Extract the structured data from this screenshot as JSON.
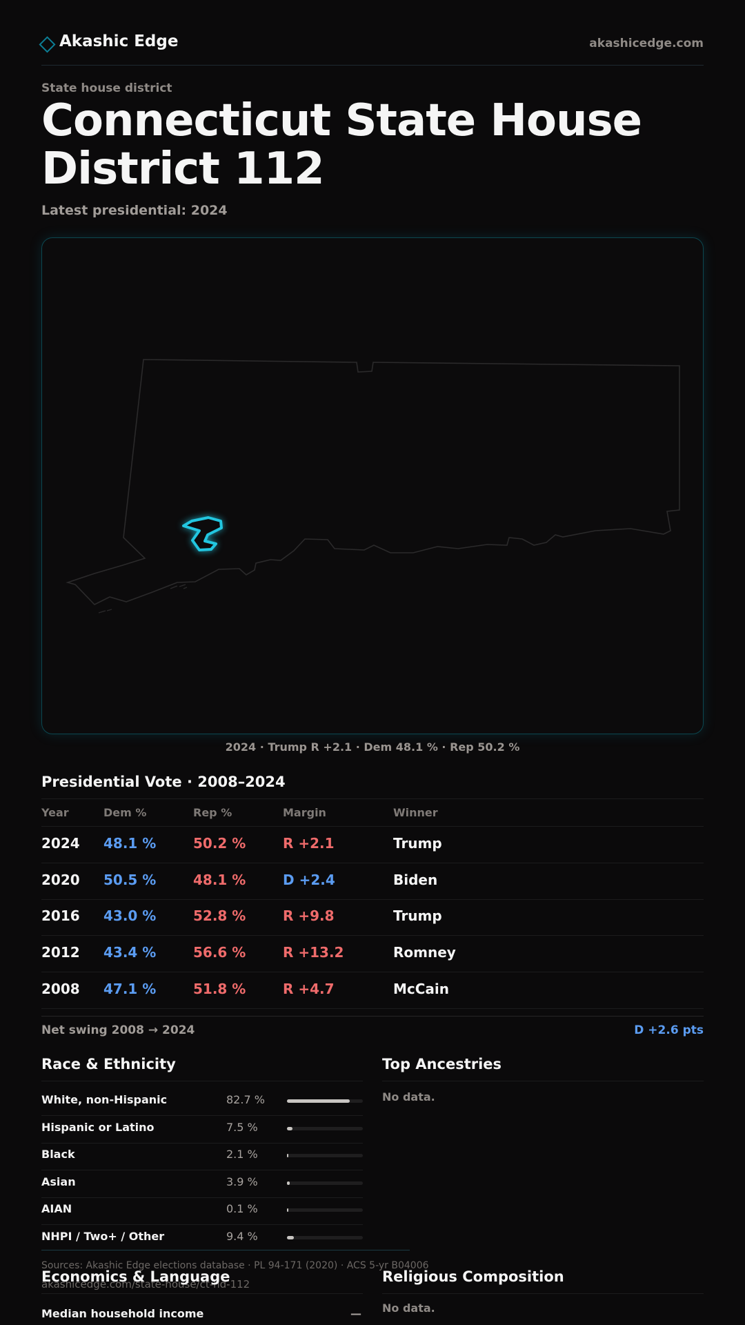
{
  "header": {
    "brand": "Akashic Edge",
    "domain": "akashicedge.com",
    "accent_color": "#0c7f96"
  },
  "page": {
    "kicker": "State house district",
    "title": "Connecticut State House District 112",
    "latest": "Latest presidential: 2024"
  },
  "map": {
    "caption": "2024 · Trump R +2.1 · Dem 48.1 % · Rep 50.2 %",
    "highlight_color": "#22c6e0"
  },
  "presidential": {
    "title": "Presidential Vote · 2008–2024",
    "headers": [
      "Year",
      "Dem %",
      "Rep %",
      "Margin",
      "Winner"
    ],
    "rows": [
      {
        "year": "2024",
        "dem": "48.1 %",
        "rep": "50.2 %",
        "margin": "R +2.1",
        "margin_party": "R",
        "winner": "Trump"
      },
      {
        "year": "2020",
        "dem": "50.5 %",
        "rep": "48.1 %",
        "margin": "D +2.4",
        "margin_party": "D",
        "winner": "Biden"
      },
      {
        "year": "2016",
        "dem": "43.0 %",
        "rep": "52.8 %",
        "margin": "R +9.8",
        "margin_party": "R",
        "winner": "Trump"
      },
      {
        "year": "2012",
        "dem": "43.4 %",
        "rep": "56.6 %",
        "margin": "R +13.2",
        "margin_party": "R",
        "winner": "Romney"
      },
      {
        "year": "2008",
        "dem": "47.1 %",
        "rep": "51.8 %",
        "margin": "R +4.7",
        "margin_party": "R",
        "winner": "McCain"
      }
    ],
    "swing_label": "Net swing 2008 → 2024",
    "swing_value": "D +2.6 pts",
    "dem_color": "#5b9cf2",
    "rep_color": "#ef6b6b"
  },
  "race": {
    "title": "Race & Ethnicity",
    "rows": [
      {
        "label": "White, non-Hispanic",
        "pct": "82.7 %",
        "share": 0.827
      },
      {
        "label": "Hispanic or Latino",
        "pct": "7.5 %",
        "share": 0.075
      },
      {
        "label": "Black",
        "pct": "2.1 %",
        "share": 0.021
      },
      {
        "label": "Asian",
        "pct": "3.9 %",
        "share": 0.039
      },
      {
        "label": "AIAN",
        "pct": "0.1 %",
        "share": 0.001
      },
      {
        "label": "NHPI / Two+ / Other",
        "pct": "9.4 %",
        "share": 0.094
      }
    ]
  },
  "ancestries": {
    "title": "Top Ancestries",
    "empty": "No data."
  },
  "economics": {
    "title": "Economics & Language",
    "row_label": "Median household income",
    "row_value": "—"
  },
  "religion": {
    "title": "Religious Composition",
    "empty": "No data."
  },
  "footer": {
    "sources": "Sources: Akashic Edge elections database · PL 94-171 (2020) · ACS 5-yr B04006",
    "url": "akashicedge.com/state-house/ct-hd-112"
  }
}
